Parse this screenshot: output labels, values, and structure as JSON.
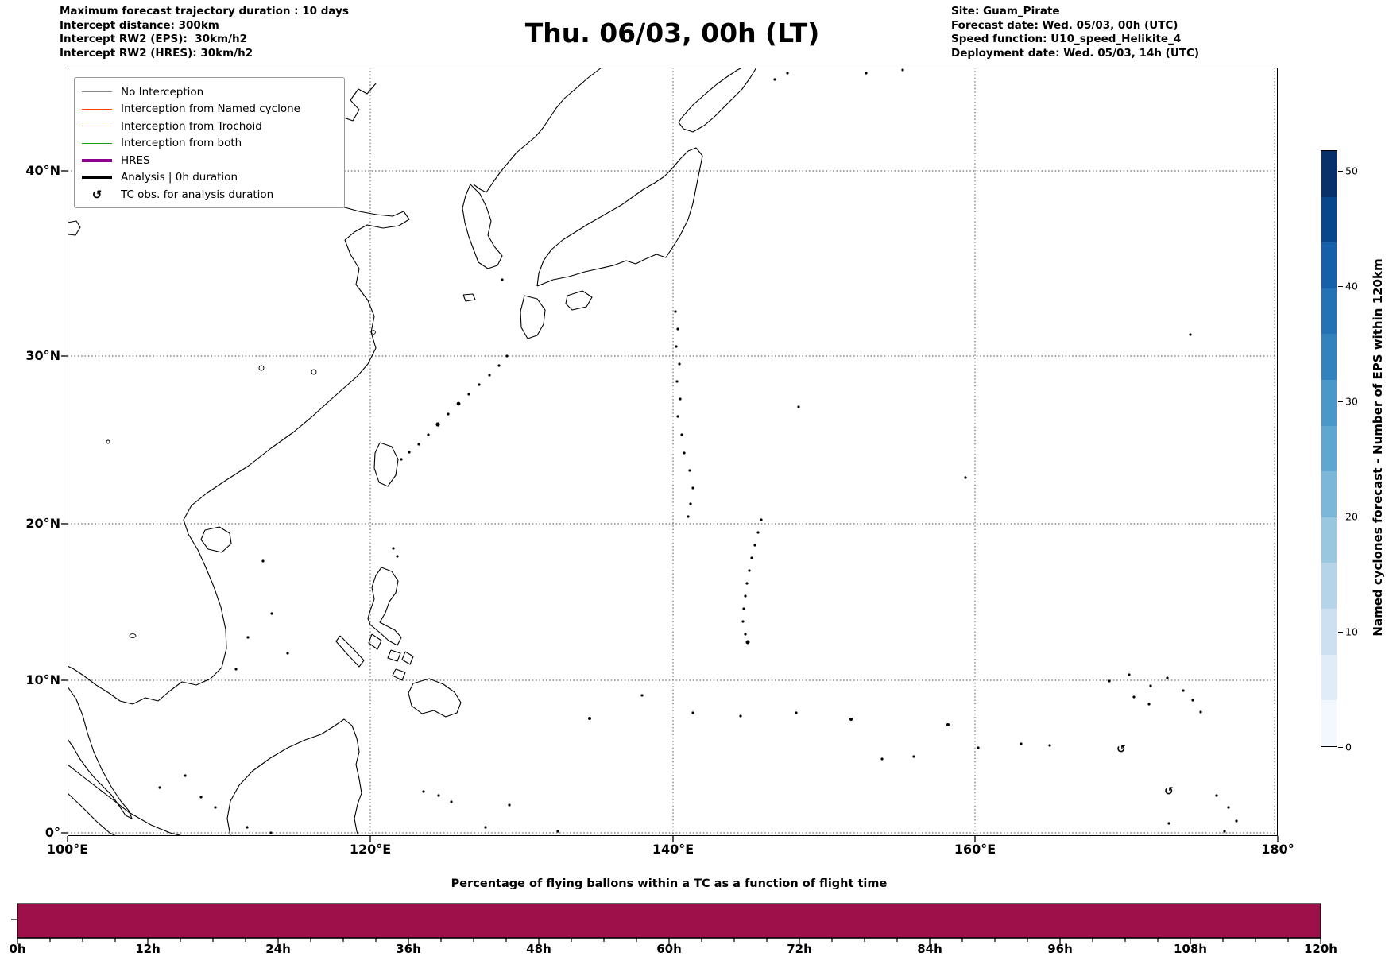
{
  "header": {
    "left_lines": [
      "Maximum forecast trajectory duration : 10 days",
      "Intercept distance: 300km",
      "Intercept RW2 (EPS):  30km/h2",
      "Intercept RW2 (HRES): 30km/h2"
    ],
    "title": "Thu. 06/03, 00h (LT)",
    "right_lines": [
      "Site: Guam_Pirate",
      "Forecast date: Wed. 05/03, 00h (UTC)",
      "Speed function: U10_speed_Helikite_4",
      "Deployment date: Wed. 05/03, 14h (UTC)"
    ]
  },
  "map": {
    "y_tick_labels": [
      "40°N",
      "30°N",
      "20°N",
      "10°N",
      "0°"
    ],
    "x_tick_labels": [
      "100°E",
      "120°E",
      "140°E",
      "160°E",
      "180°"
    ],
    "tc_marker_glyph": "↺",
    "legend": {
      "items": [
        {
          "label": "No Interception",
          "color": "#8a8a8a",
          "style": "thin"
        },
        {
          "label": "Interception from Named cyclone",
          "color": "#ff4500",
          "style": "thin"
        },
        {
          "label": "Interception from Trochoid",
          "color": "#a8aa00",
          "style": "thin"
        },
        {
          "label": "Interception from both",
          "color": "#12a012",
          "style": "thin"
        },
        {
          "label": "HRES",
          "color": "#8e008e",
          "style": "thick"
        },
        {
          "label": "Analysis | 0h duration",
          "color": "#000000",
          "style": "thick"
        },
        {
          "label": "TC obs. for analysis duration",
          "glyph": "↺",
          "style": "glyph"
        }
      ]
    }
  },
  "colorbar": {
    "label": "Named cyclones forecast - Number of EPS within 120km",
    "tick_labels": [
      "0",
      "10",
      "20",
      "30",
      "40",
      "50"
    ],
    "tick_values": [
      0,
      10,
      20,
      30,
      40,
      50
    ],
    "vmin": 0,
    "vmax": 52,
    "colors_top_to_bottom": [
      "#08306b",
      "#08468b",
      "#1560a8",
      "#2272b5",
      "#3282be",
      "#4a98c9",
      "#5fa6d1",
      "#7cb7da",
      "#99c7e0",
      "#b5d4e9",
      "#cce0f1",
      "#e0ecf7",
      "#f2f8fd"
    ]
  },
  "bottom_chart": {
    "title": "Percentage of flying ballons within a TC as a function of flight time",
    "x_tick_labels": [
      "0h",
      "12h",
      "24h",
      "36h",
      "48h",
      "60h",
      "72h",
      "84h",
      "96h",
      "108h",
      "120h"
    ],
    "bar_color": "#9e1049"
  },
  "chart_data": {
    "type": "bar",
    "title": "Percentage of flying ballons within a TC as a function of flight time",
    "x_range_hours": [
      0,
      120
    ],
    "x_ticks_hours": [
      0,
      12,
      24,
      36,
      48,
      60,
      72,
      84,
      96,
      108,
      120
    ],
    "x_tick_labels": [
      "0h",
      "12h",
      "24h",
      "36h",
      "48h",
      "60h",
      "72h",
      "84h",
      "96h",
      "108h",
      "120h"
    ],
    "series": [
      {
        "name": "Percentage of flying balloons within a TC",
        "uniform_value": "full bar across 0h–120h",
        "color": "#9e1049"
      }
    ],
    "map_extent": {
      "lon": [
        100,
        180
      ],
      "lat": [
        0,
        45
      ],
      "projection": "Mercator",
      "grid": "dotted, 20° lon / 10° lat"
    },
    "colorbar": {
      "label": "Named cyclones forecast - Number of EPS within 120km",
      "range": [
        0,
        52
      ],
      "ticks": [
        0,
        10,
        20,
        30,
        40,
        50
      ],
      "colormap": "Blues"
    }
  }
}
